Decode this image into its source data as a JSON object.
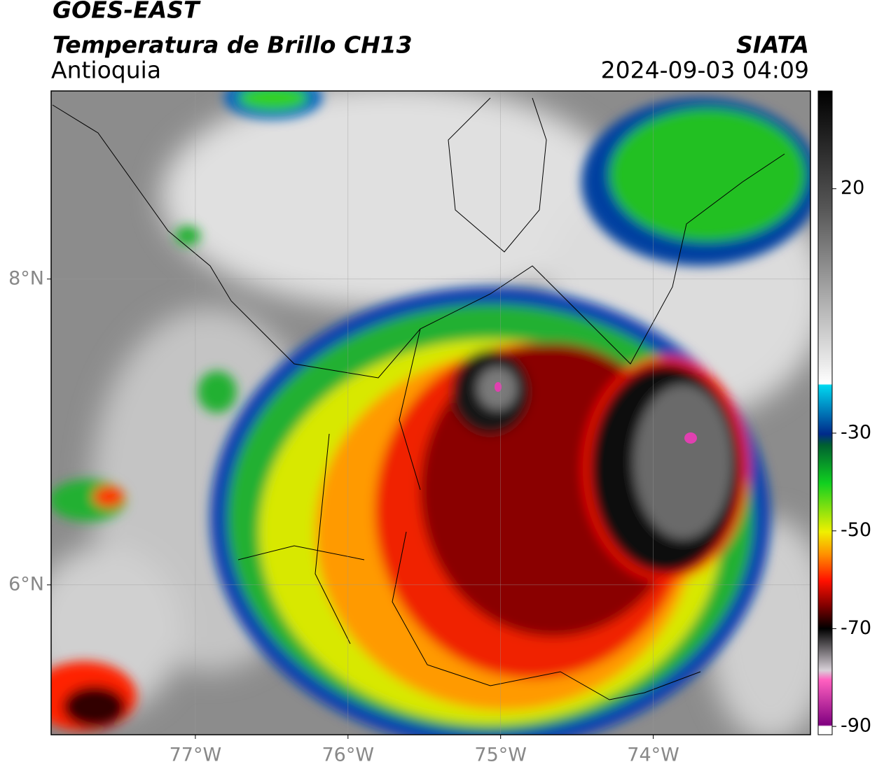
{
  "header": {
    "title": "GOES-EAST",
    "subtitle": "Temperatura de Brillo CH13",
    "region": "Antioquia",
    "source": "SIATA",
    "datetime": "2024-09-03 04:09"
  },
  "map": {
    "xlim": [
      -77.945,
      -72.97
    ],
    "ylim": [
      5.02,
      9.23
    ],
    "xticks": [
      {
        "value": -77,
        "label": "77°W"
      },
      {
        "value": -76,
        "label": "76°W"
      },
      {
        "value": -75,
        "label": "75°W"
      },
      {
        "value": -74,
        "label": "74°W"
      }
    ],
    "yticks": [
      {
        "value": 8,
        "label": "8°N"
      },
      {
        "value": 6,
        "label": "6°N"
      }
    ],
    "grid": true
  },
  "colorbar": {
    "lim": [
      -91.7,
      40
    ],
    "ticks": [
      20,
      -30,
      -50,
      -70,
      -90
    ]
  }
}
